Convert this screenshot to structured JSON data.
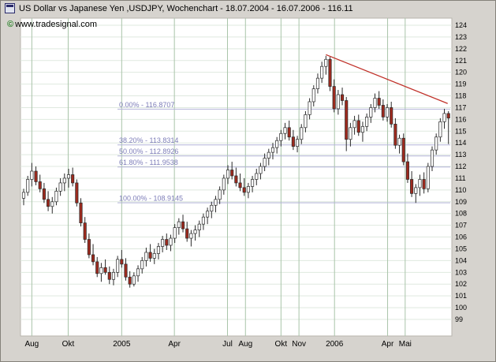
{
  "window": {
    "title": "US Dollar vs Japanese Yen ,USDJPY, Wochenchart - 18.07.2004 - 16.07.2006 - 116.11",
    "copyright_symbol": "©",
    "copyright_text": "www.tradesignal.com"
  },
  "colors": {
    "window_bg": "#d6d3ce",
    "plot_bg": "#ffffff",
    "grid_horizontal": "#dfe9df",
    "grid_vertical": "#a9c4a9",
    "candle_up": "#ffffff",
    "candle_down": "#9e2a1e",
    "candle_border": "#2a2a2a",
    "wick": "#2a2a2a",
    "fib_line": "#b3b3d9",
    "fib_label": "#7d7db8",
    "trendline": "#c03028",
    "axis_text": "#000000"
  },
  "chart_data": {
    "type": "candlestick",
    "title": "US Dollar vs Japanese Yen ,USDJPY, Wochenchart - 18.07.2004 - 16.07.2006 - 116.11",
    "last_price": 116.11,
    "y_axis": {
      "min": 99,
      "max": 124,
      "tick_step": 1
    },
    "x_axis": {
      "labels": [
        {
          "label": "Aug",
          "week": 3
        },
        {
          "label": "Okt",
          "week": 11.9
        },
        {
          "label": "2005",
          "week": 25
        },
        {
          "label": "Apr",
          "week": 37.9
        },
        {
          "label": "Jul",
          "week": 50.9
        },
        {
          "label": "Aug",
          "week": 55.3
        },
        {
          "label": "Okt",
          "week": 64.0
        },
        {
          "label": "Nov",
          "week": 68.4
        },
        {
          "label": "2006",
          "week": 77.1
        },
        {
          "label": "Apr",
          "week": 90.1
        },
        {
          "label": "Mai",
          "week": 94.4
        }
      ]
    },
    "fibonacci_levels": [
      {
        "label": "0.00% - 116.8707",
        "price": 116.8707
      },
      {
        "label": "38.20% - 113.8314",
        "price": 113.8314
      },
      {
        "label": "50.00% - 112.8926",
        "price": 112.8926
      },
      {
        "label": "61.80% - 111.9538",
        "price": 111.9538
      },
      {
        "label": "100.00% - 108.9145",
        "price": 108.9145
      }
    ],
    "trendline": {
      "from": {
        "week": 75,
        "price": 121.5
      },
      "to": {
        "week": 104.8,
        "price": 117.35
      }
    },
    "candles_ohlc": [
      [
        109.3,
        110.1,
        108.7,
        109.8
      ],
      [
        109.8,
        111.2,
        109.5,
        110.9
      ],
      [
        110.9,
        112.3,
        110.3,
        111.6
      ],
      [
        111.6,
        112.0,
        110.4,
        110.7
      ],
      [
        110.7,
        111.3,
        109.8,
        110.1
      ],
      [
        110.1,
        110.6,
        108.9,
        109.2
      ],
      [
        109.2,
        109.9,
        108.2,
        108.6
      ],
      [
        108.6,
        109.4,
        108.0,
        109.0
      ],
      [
        109.0,
        110.2,
        108.7,
        109.9
      ],
      [
        109.9,
        111.0,
        109.5,
        110.6
      ],
      [
        110.6,
        111.4,
        109.9,
        111.0
      ],
      [
        111.0,
        111.8,
        110.2,
        111.3
      ],
      [
        111.3,
        111.9,
        110.3,
        110.6
      ],
      [
        110.6,
        110.9,
        108.6,
        108.9
      ],
      [
        108.9,
        109.3,
        106.9,
        107.2
      ],
      [
        107.2,
        107.7,
        105.5,
        105.8
      ],
      [
        105.8,
        106.3,
        104.2,
        104.5
      ],
      [
        104.5,
        105.4,
        103.6,
        103.9
      ],
      [
        103.9,
        104.3,
        102.6,
        102.9
      ],
      [
        102.9,
        103.8,
        102.2,
        103.4
      ],
      [
        103.4,
        104.1,
        102.8,
        103.0
      ],
      [
        103.0,
        103.5,
        102.0,
        102.4
      ],
      [
        102.4,
        103.3,
        101.9,
        103.0
      ],
      [
        103.0,
        104.4,
        102.6,
        104.1
      ],
      [
        104.1,
        104.9,
        103.4,
        103.7
      ],
      [
        103.7,
        104.2,
        102.3,
        102.6
      ],
      [
        102.6,
        103.1,
        101.7,
        102.0
      ],
      [
        102.0,
        103.0,
        101.8,
        102.7
      ],
      [
        102.7,
        103.6,
        102.2,
        103.3
      ],
      [
        103.3,
        104.3,
        102.9,
        104.0
      ],
      [
        104.0,
        105.1,
        103.5,
        104.7
      ],
      [
        104.7,
        105.4,
        103.9,
        104.2
      ],
      [
        104.2,
        105.0,
        103.7,
        104.6
      ],
      [
        104.6,
        105.5,
        104.1,
        105.2
      ],
      [
        105.2,
        106.1,
        104.7,
        105.8
      ],
      [
        105.8,
        106.3,
        104.9,
        105.3
      ],
      [
        105.3,
        106.2,
        104.8,
        105.9
      ],
      [
        105.9,
        107.1,
        105.5,
        106.8
      ],
      [
        106.8,
        107.6,
        106.2,
        107.3
      ],
      [
        107.3,
        107.9,
        106.4,
        106.7
      ],
      [
        106.7,
        107.3,
        105.6,
        105.9
      ],
      [
        105.9,
        106.6,
        105.2,
        106.3
      ],
      [
        106.3,
        107.0,
        105.7,
        106.6
      ],
      [
        106.6,
        107.4,
        106.0,
        107.1
      ],
      [
        107.1,
        108.0,
        106.6,
        107.7
      ],
      [
        107.7,
        108.5,
        107.1,
        108.2
      ],
      [
        108.2,
        109.0,
        107.6,
        108.7
      ],
      [
        108.7,
        109.5,
        108.1,
        109.2
      ],
      [
        109.2,
        110.3,
        108.8,
        110.0
      ],
      [
        110.0,
        111.3,
        109.6,
        111.0
      ],
      [
        111.0,
        112.1,
        110.5,
        111.7
      ],
      [
        111.7,
        112.4,
        110.9,
        111.2
      ],
      [
        111.2,
        111.9,
        110.3,
        110.6
      ],
      [
        110.6,
        111.4,
        109.9,
        110.2
      ],
      [
        110.2,
        111.0,
        109.5,
        109.8
      ],
      [
        109.8,
        110.6,
        109.3,
        110.3
      ],
      [
        110.3,
        111.2,
        109.8,
        110.9
      ],
      [
        110.9,
        111.8,
        110.4,
        111.4
      ],
      [
        111.4,
        112.3,
        110.9,
        112.0
      ],
      [
        112.0,
        113.1,
        111.6,
        112.7
      ],
      [
        112.7,
        113.5,
        112.1,
        113.2
      ],
      [
        113.2,
        114.0,
        112.6,
        113.6
      ],
      [
        113.6,
        114.5,
        113.1,
        114.2
      ],
      [
        114.2,
        115.1,
        113.7,
        114.8
      ],
      [
        114.8,
        115.7,
        114.3,
        115.3
      ],
      [
        115.3,
        115.9,
        114.2,
        114.5
      ],
      [
        114.5,
        115.1,
        113.4,
        113.7
      ],
      [
        113.7,
        114.6,
        113.2,
        114.3
      ],
      [
        114.3,
        115.6,
        113.9,
        115.3
      ],
      [
        115.3,
        116.7,
        114.9,
        116.4
      ],
      [
        116.4,
        117.8,
        116.0,
        117.5
      ],
      [
        117.5,
        118.9,
        117.1,
        118.6
      ],
      [
        118.6,
        119.9,
        118.2,
        119.5
      ],
      [
        119.5,
        120.9,
        119.1,
        120.5
      ],
      [
        120.5,
        121.4,
        119.8,
        121.1
      ],
      [
        121.1,
        121.3,
        118.4,
        118.8
      ],
      [
        118.8,
        119.4,
        116.6,
        116.9
      ],
      [
        116.9,
        118.5,
        116.4,
        118.1
      ],
      [
        118.1,
        118.7,
        117.2,
        117.6
      ],
      [
        117.6,
        117.9,
        113.3,
        114.3
      ],
      [
        114.3,
        115.7,
        113.7,
        115.3
      ],
      [
        115.3,
        116.3,
        114.7,
        115.9
      ],
      [
        115.9,
        116.4,
        114.6,
        114.9
      ],
      [
        114.9,
        115.8,
        114.1,
        115.4
      ],
      [
        115.4,
        116.5,
        115.0,
        116.2
      ],
      [
        116.2,
        117.3,
        115.7,
        117.0
      ],
      [
        117.0,
        118.2,
        116.6,
        117.8
      ],
      [
        117.8,
        118.4,
        116.9,
        117.2
      ],
      [
        117.2,
        117.7,
        115.9,
        116.2
      ],
      [
        116.2,
        117.3,
        115.8,
        117.0
      ],
      [
        117.0,
        117.5,
        115.3,
        115.6
      ],
      [
        115.6,
        116.1,
        113.5,
        113.8
      ],
      [
        113.8,
        114.7,
        113.1,
        114.4
      ],
      [
        114.4,
        114.8,
        112.1,
        112.4
      ],
      [
        112.4,
        113.1,
        110.6,
        110.9
      ],
      [
        110.9,
        111.6,
        109.4,
        109.7
      ],
      [
        109.7,
        110.5,
        108.9,
        110.2
      ],
      [
        110.2,
        111.3,
        109.5,
        110.9
      ],
      [
        110.9,
        111.5,
        109.7,
        110.1
      ],
      [
        110.1,
        112.3,
        109.8,
        112.0
      ],
      [
        112.0,
        113.7,
        111.6,
        113.4
      ],
      [
        113.4,
        114.8,
        113.0,
        114.5
      ],
      [
        114.5,
        116.1,
        114.1,
        115.8
      ],
      [
        115.8,
        116.9,
        115.2,
        116.5
      ],
      [
        116.5,
        116.7,
        113.9,
        116.11
      ]
    ]
  }
}
